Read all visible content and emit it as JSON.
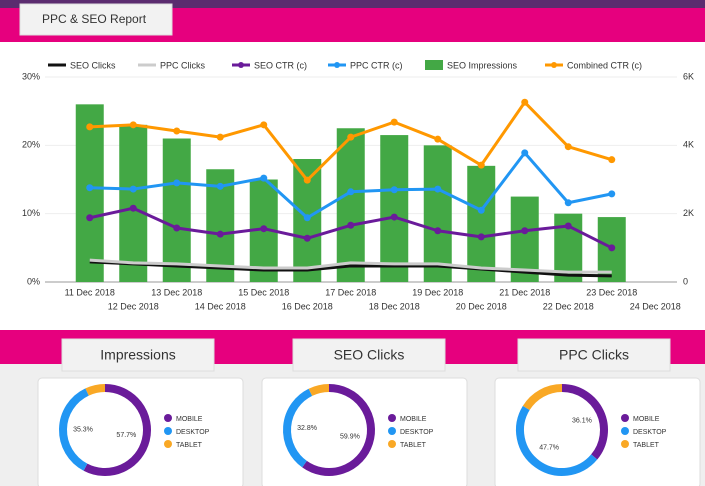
{
  "header": {
    "title": "PPC & SEO Report"
  },
  "chart_data": [
    {
      "type": "combo",
      "categories": [
        "11 Dec 2018",
        "12 Dec 2018",
        "13 Dec 2018",
        "14 Dec 2018",
        "15 Dec 2018",
        "16 Dec 2018",
        "17 Dec 2018",
        "18 Dec 2018",
        "19 Dec 2018",
        "20 Dec 2018",
        "21 Dec 2018",
        "22 Dec 2018",
        "23 Dec 2018",
        "24 Dec 2018"
      ],
      "ylim": [
        0,
        30
      ],
      "yticks": [
        {
          "value": 0,
          "label": "0%"
        },
        {
          "value": 10,
          "label": "10%"
        },
        {
          "value": 20,
          "label": "20%"
        },
        {
          "value": 30,
          "label": "30%"
        }
      ],
      "y2lim": [
        0,
        6000
      ],
      "y2ticks": [
        0,
        {
          "value": 2000,
          "label": "2K"
        },
        {
          "value": 4000,
          "label": "4K"
        },
        {
          "value": 6000,
          "label": "6K"
        }
      ],
      "grid": true,
      "legend": "top",
      "series": [
        {
          "name": "SEO Clicks",
          "type": "line",
          "axis": "y2",
          "color": "#111111",
          "values": [
            590,
            530,
            470,
            410,
            350,
            350,
            470,
            470,
            470,
            380,
            290,
            200,
            180,
            null
          ]
        },
        {
          "name": "PPC Clicks",
          "type": "line",
          "axis": "y2",
          "color": "#cccccc",
          "values": [
            640,
            560,
            530,
            470,
            410,
            410,
            560,
            530,
            530,
            410,
            350,
            290,
            290,
            null
          ]
        },
        {
          "name": "SEO CTR (c)",
          "type": "line",
          "markers": true,
          "color": "#6a1b9a",
          "values": [
            9.4,
            10.8,
            7.9,
            7.0,
            7.8,
            6.4,
            8.3,
            9.5,
            7.5,
            6.6,
            7.5,
            8.2,
            5.0,
            null
          ]
        },
        {
          "name": "PPC CTR (c)",
          "type": "line",
          "markers": true,
          "color": "#2196f3",
          "values": [
            13.8,
            13.6,
            14.5,
            14.0,
            15.2,
            9.4,
            13.2,
            13.5,
            13.6,
            10.5,
            18.9,
            11.6,
            12.9,
            null
          ]
        },
        {
          "name": "SEO Impressions",
          "type": "bar",
          "axis": "y2",
          "color": "#43a845",
          "values": [
            5200,
            4600,
            4200,
            3300,
            3000,
            3600,
            4500,
            4300,
            4000,
            3400,
            2500,
            2000,
            1900,
            null
          ]
        },
        {
          "name": "Combined CTR (c)",
          "type": "line",
          "markers": true,
          "color": "#ff9800",
          "values": [
            22.7,
            23.0,
            22.1,
            21.2,
            23.0,
            14.9,
            21.2,
            23.4,
            20.9,
            17.1,
            26.3,
            19.8,
            17.9,
            null
          ]
        }
      ]
    },
    {
      "type": "pie",
      "title": "Impressions",
      "categories": [
        "MOBILE",
        "DESKTOP",
        "TABLET"
      ],
      "values": [
        57.7,
        35.3,
        7.0
      ],
      "value_labels": [
        "57.7%",
        "35.3%",
        null
      ],
      "colors": [
        "#6a1b9a",
        "#2196f3",
        "#f9a825"
      ]
    },
    {
      "type": "pie",
      "title": "SEO Clicks",
      "categories": [
        "MOBILE",
        "DESKTOP",
        "TABLET"
      ],
      "values": [
        59.9,
        32.8,
        7.3
      ],
      "value_labels": [
        "59.9%",
        "32.8%",
        null
      ],
      "colors": [
        "#6a1b9a",
        "#2196f3",
        "#f9a825"
      ]
    },
    {
      "type": "pie",
      "title": "PPC Clicks",
      "categories": [
        "MOBILE",
        "DESKTOP",
        "TABLET"
      ],
      "values": [
        36.1,
        47.7,
        16.2
      ],
      "value_labels": [
        "36.1%",
        "47.7%",
        null
      ],
      "colors": [
        "#6a1b9a",
        "#2196f3",
        "#f9a825"
      ]
    }
  ]
}
